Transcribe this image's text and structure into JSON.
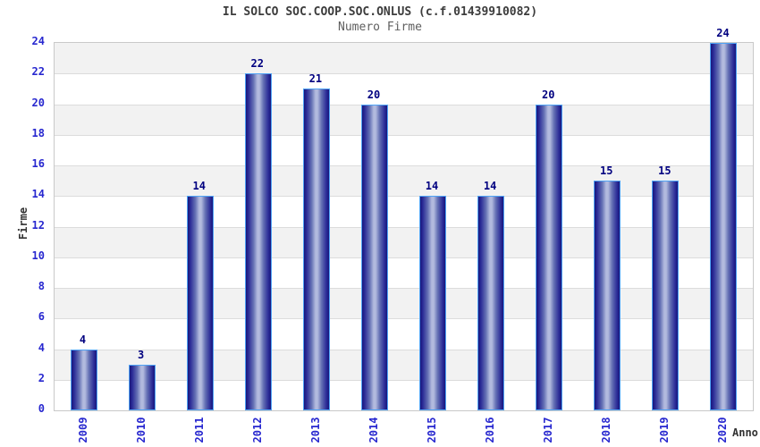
{
  "chart_data": {
    "type": "bar",
    "title": "IL SOLCO SOC.COOP.SOC.ONLUS (c.f.01439910082)",
    "subtitle": "Numero Firme",
    "xlabel": "Anno",
    "ylabel": "Firme",
    "categories": [
      "2009",
      "2010",
      "2011",
      "2012",
      "2013",
      "2014",
      "2015",
      "2016",
      "2017",
      "2018",
      "2019",
      "2020"
    ],
    "values": [
      4,
      3,
      14,
      22,
      21,
      20,
      14,
      14,
      20,
      15,
      15,
      24
    ],
    "ylim": [
      0,
      24
    ],
    "ytick_step": 2,
    "yticks": [
      0,
      2,
      4,
      6,
      8,
      10,
      12,
      14,
      16,
      18,
      20,
      22,
      24
    ],
    "grid": "horizontal-bands",
    "legend": "none",
    "value_labels_shown": true,
    "colors": {
      "bar_dark": "#17177c",
      "bar_mid2": "#2b2b97",
      "bar_mid": "#6470b4",
      "bar_light": "#b2bade",
      "bar_border": "#4fa3f5",
      "value_label": "#000080",
      "tick_label": "#2727cf",
      "title": "#3c3c3c",
      "subtitle": "#5f5f5f",
      "axis_label": "#333333",
      "band_gray": "#f2f2f2",
      "band_white": "#ffffff",
      "grid_line": "#dcdcdc",
      "plot_border": "#c9c9c9"
    }
  }
}
